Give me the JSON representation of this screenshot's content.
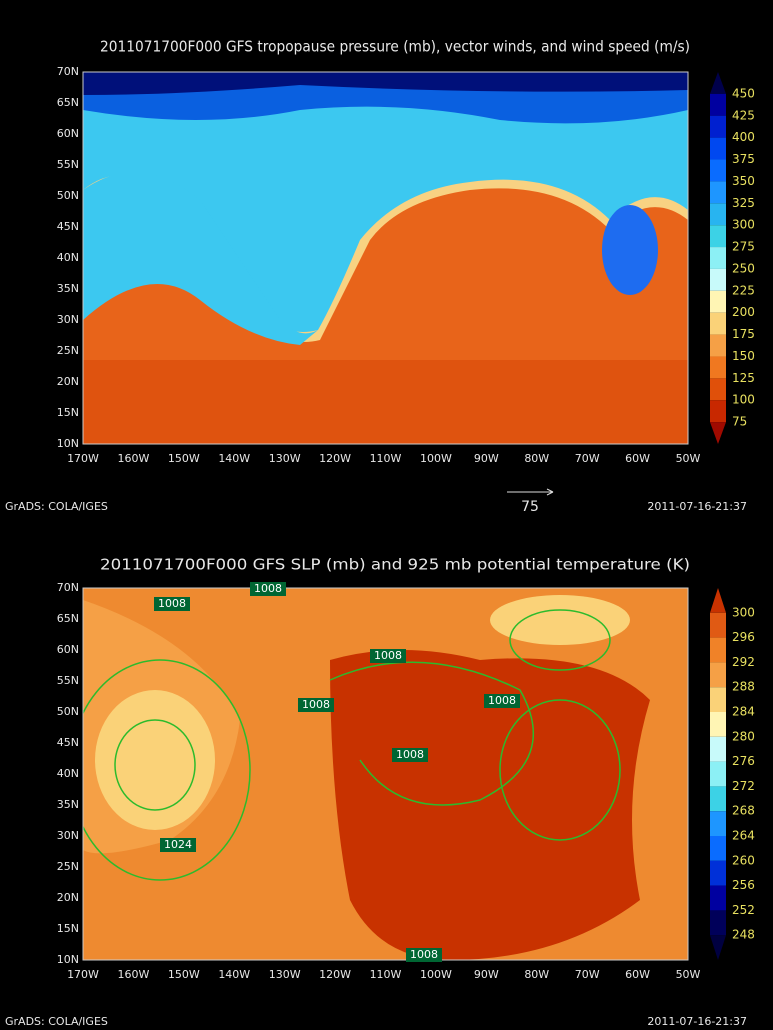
{
  "panels": [
    {
      "title": "2011071700F000 GFS tropopause pressure (mb), vector winds, and wind speed (m/s)",
      "lat_labels": [
        "70N",
        "65N",
        "60N",
        "55N",
        "50N",
        "45N",
        "40N",
        "35N",
        "30N",
        "25N",
        "20N",
        "15N",
        "10N"
      ],
      "lon_labels": [
        "170W",
        "160W",
        "150W",
        "140W",
        "130W",
        "120W",
        "110W",
        "100W",
        "90W",
        "80W",
        "70W",
        "60W",
        "50W"
      ],
      "colorbar_labels": [
        450,
        425,
        400,
        375,
        350,
        325,
        300,
        275,
        250,
        225,
        200,
        175,
        150,
        125,
        100,
        75
      ],
      "colorbar_colors": [
        "#00004a",
        "#0000a0",
        "#0020d0",
        "#0048f0",
        "#0a6cff",
        "#1e96ff",
        "#28b4f0",
        "#3cd2e6",
        "#8cf0f5",
        "#c8fafa",
        "#fff5b4",
        "#fad278",
        "#f5a046",
        "#f07820",
        "#e0500a",
        "#c82800",
        "#a00a00"
      ],
      "footer_left": "GrADS: COLA/IGES",
      "vector_reference": "75",
      "footer_right": "2011-07-16-21:37"
    },
    {
      "title": "2011071700F000 GFS SLP (mb) and 925 mb potential temperature (K)",
      "lat_labels": [
        "70N",
        "65N",
        "60N",
        "55N",
        "50N",
        "45N",
        "40N",
        "35N",
        "30N",
        "25N",
        "20N",
        "15N",
        "10N"
      ],
      "lon_labels": [
        "170W",
        "160W",
        "150W",
        "140W",
        "130W",
        "120W",
        "110W",
        "100W",
        "90W",
        "80W",
        "70W",
        "60W",
        "50W"
      ],
      "colorbar_labels": [
        300,
        296,
        292,
        288,
        284,
        280,
        276,
        272,
        268,
        264,
        260,
        256,
        252,
        248
      ],
      "colorbar_colors": [
        "#c83200",
        "#e05a14",
        "#f08228",
        "#f5a046",
        "#fad278",
        "#fff5b4",
        "#c8fafa",
        "#8cf0f5",
        "#3cd2e6",
        "#1e96ff",
        "#0a6cff",
        "#0030d8",
        "#0000a0",
        "#00005a",
        "#000040"
      ],
      "contour_labels": [
        "1008",
        "1008",
        "1008",
        "1008",
        "1008",
        "1008",
        "1024",
        "1008"
      ],
      "footer_left": "GrADS: COLA/IGES",
      "footer_right": "2011-07-16-21:37"
    }
  ]
}
